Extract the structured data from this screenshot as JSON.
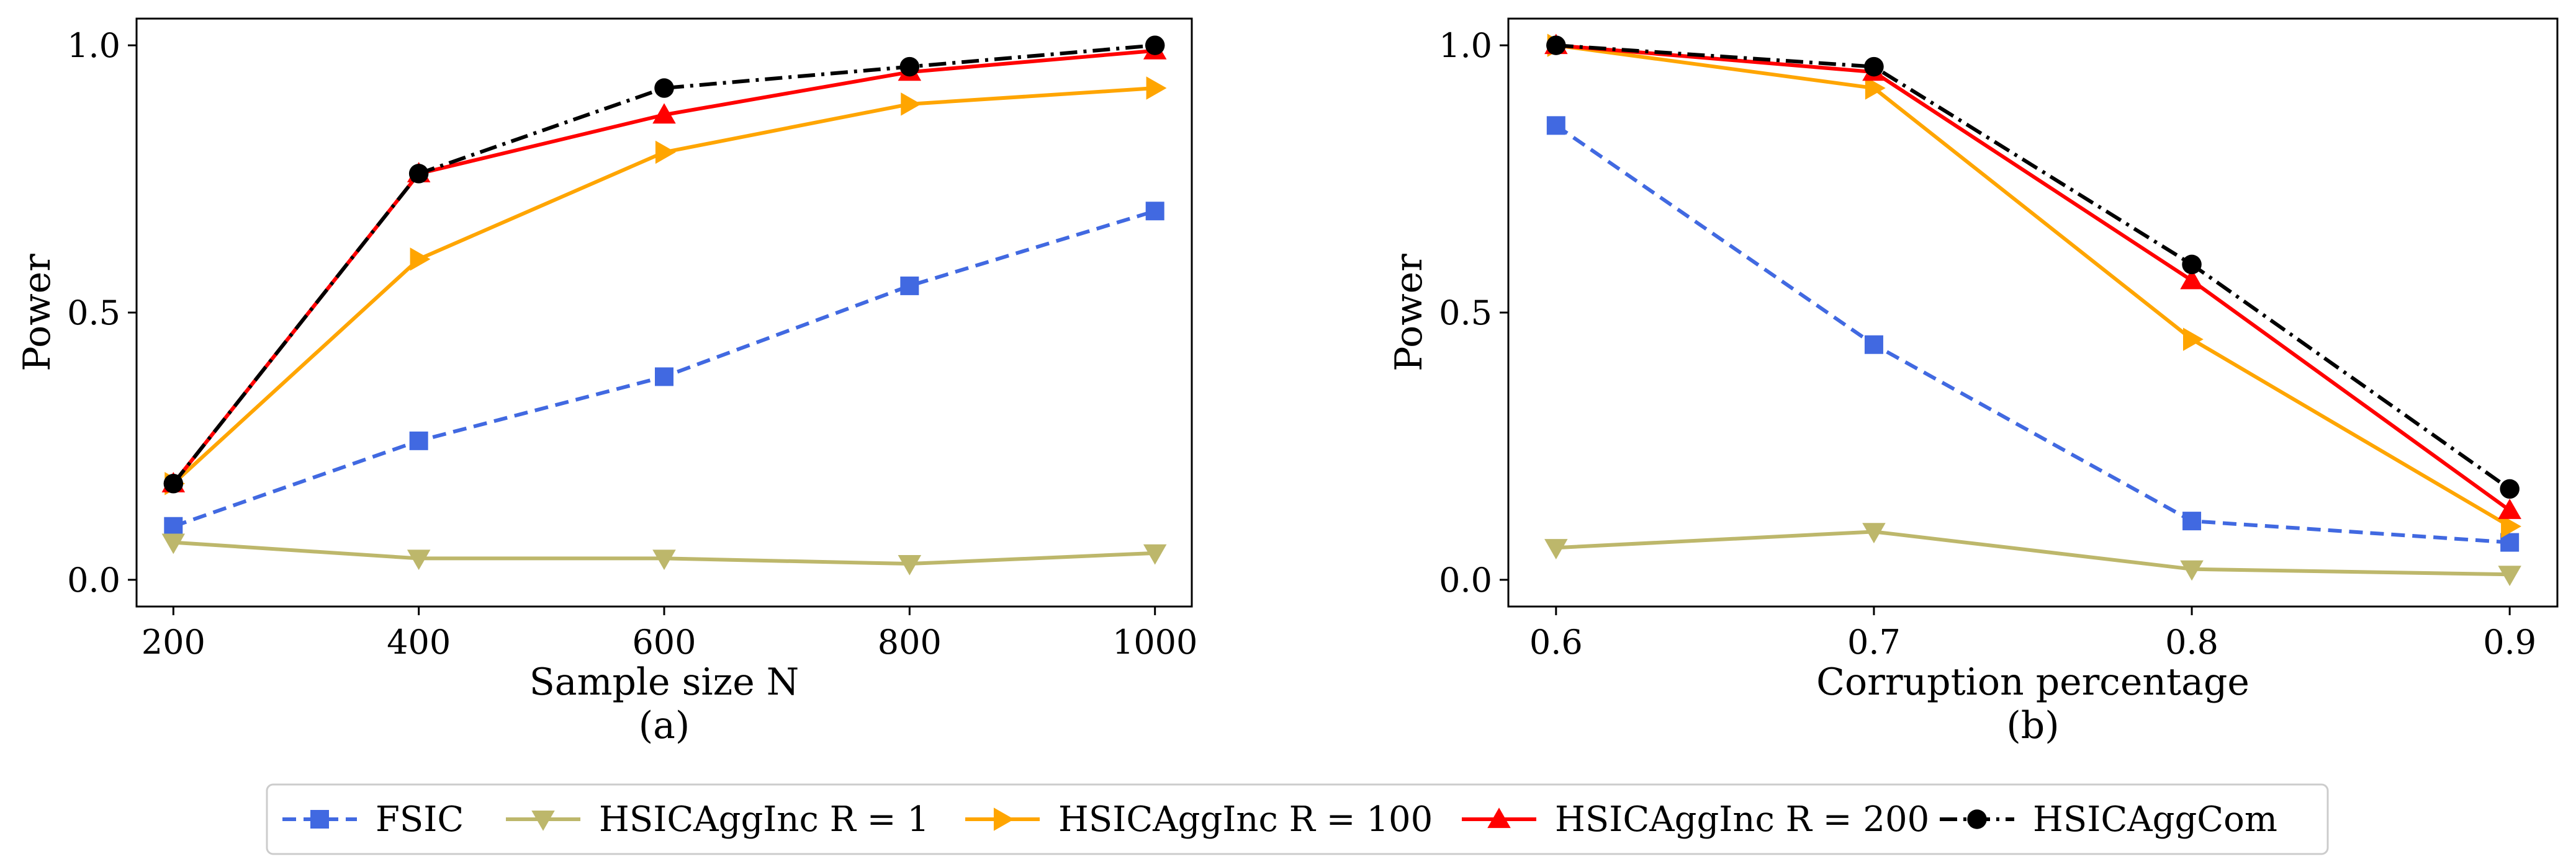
{
  "chart_data": [
    {
      "type": "line",
      "panel_label": "(a)",
      "xlabel": "Sample size N",
      "ylabel": "Power",
      "x": [
        200,
        400,
        600,
        800,
        1000
      ],
      "xticks": [
        "200",
        "400",
        "600",
        "800",
        "1000"
      ],
      "yticks": [
        "0.0",
        "0.5",
        "1.0"
      ],
      "xlim": [
        170,
        1030
      ],
      "ylim": [
        -0.05,
        1.05
      ],
      "grid": false,
      "series": [
        {
          "name": "FSIC",
          "values": [
            0.1,
            0.26,
            0.38,
            0.55,
            0.69
          ]
        },
        {
          "name": "HSICAggInc R = 1",
          "values": [
            0.07,
            0.04,
            0.04,
            0.03,
            0.05
          ]
        },
        {
          "name": "HSICAggInc R = 100",
          "values": [
            0.18,
            0.6,
            0.8,
            0.89,
            0.92
          ]
        },
        {
          "name": "HSICAggInc R = 200",
          "values": [
            0.18,
            0.76,
            0.87,
            0.95,
            0.99
          ]
        },
        {
          "name": "HSICAggCom",
          "values": [
            0.18,
            0.76,
            0.92,
            0.96,
            1.0
          ]
        }
      ]
    },
    {
      "type": "line",
      "panel_label": "(b)",
      "xlabel": "Corruption percentage",
      "ylabel": "Power",
      "x": [
        0.6,
        0.7,
        0.8,
        0.9
      ],
      "xticks": [
        "0.6",
        "0.7",
        "0.8",
        "0.9"
      ],
      "yticks": [
        "0.0",
        "0.5",
        "1.0"
      ],
      "xlim": [
        0.585,
        0.915
      ],
      "ylim": [
        -0.05,
        1.05
      ],
      "grid": false,
      "series": [
        {
          "name": "FSIC",
          "values": [
            0.85,
            0.44,
            0.11,
            0.07
          ]
        },
        {
          "name": "HSICAggInc R = 1",
          "values": [
            0.06,
            0.09,
            0.02,
            0.01
          ]
        },
        {
          "name": "HSICAggInc R = 100",
          "values": [
            1.0,
            0.92,
            0.45,
            0.1
          ]
        },
        {
          "name": "HSICAggInc R = 200",
          "values": [
            1.0,
            0.95,
            0.56,
            0.13
          ]
        },
        {
          "name": "HSICAggCom",
          "values": [
            1.0,
            0.96,
            0.59,
            0.17
          ]
        }
      ]
    }
  ],
  "legend": {
    "placement": "bottom-center",
    "entries": [
      {
        "label": "FSIC",
        "color": "#4169E1",
        "marker": "square",
        "dash": "dashed"
      },
      {
        "label": "HSICAggInc R = 1",
        "color": "#BDB76B",
        "marker": "triangle-down",
        "dash": "solid"
      },
      {
        "label": "HSICAggInc R = 100",
        "color": "#FFA500",
        "marker": "triangle-right",
        "dash": "solid"
      },
      {
        "label": "HSICAggInc R = 200",
        "color": "#FF0000",
        "marker": "triangle-up",
        "dash": "solid"
      },
      {
        "label": "HSICAggCom",
        "color": "#000000",
        "marker": "circle",
        "dash": "dashdot"
      }
    ]
  }
}
